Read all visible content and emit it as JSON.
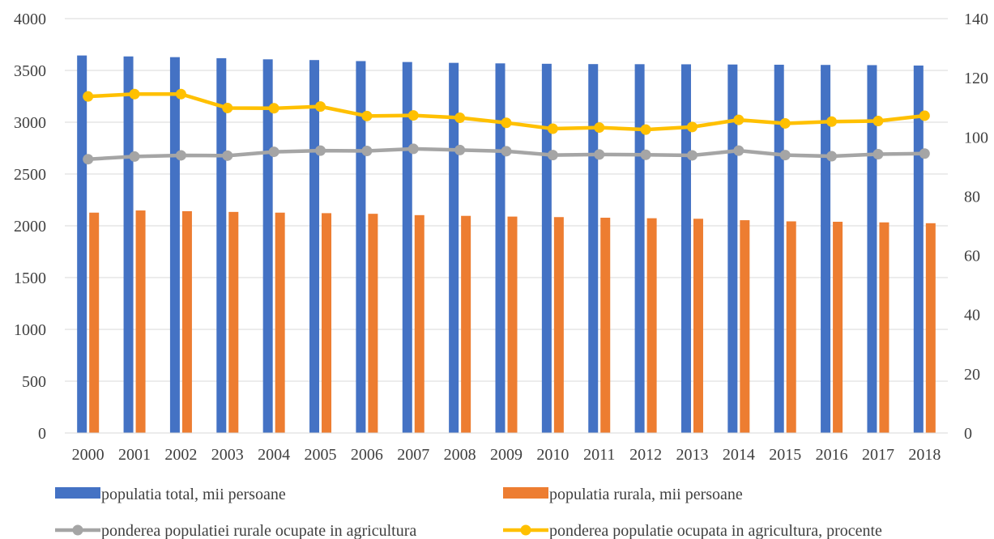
{
  "chart_data": {
    "type": "bar",
    "categories": [
      "2000",
      "2001",
      "2002",
      "2003",
      "2004",
      "2005",
      "2006",
      "2007",
      "2008",
      "2009",
      "2010",
      "2011",
      "2012",
      "2013",
      "2014",
      "2015",
      "2016",
      "2017",
      "2018"
    ],
    "ylim_left": [
      0,
      4000
    ],
    "yticks_left": [
      0,
      500,
      1000,
      1500,
      2000,
      2500,
      3000,
      3500,
      4000
    ],
    "ylim_right": [
      0,
      140
    ],
    "yticks_right": [
      0,
      20,
      40,
      60,
      80,
      100,
      120,
      140
    ],
    "grid": true,
    "legend_position": "bottom",
    "series": [
      {
        "name": "populatia total, mii persoane",
        "kind": "bar",
        "axis": "left",
        "color": "#4472C4",
        "values": [
          3644,
          3635,
          3628,
          3618,
          3607,
          3600,
          3590,
          3581,
          3573,
          3568,
          3564,
          3561,
          3560,
          3559,
          3557,
          3555,
          3553,
          3551,
          3547
        ]
      },
      {
        "name": "populatia rurala, mii persoane",
        "kind": "bar",
        "axis": "left",
        "color": "#ED7D31",
        "values": [
          2127,
          2148,
          2141,
          2134,
          2127,
          2122,
          2116,
          2103,
          2096,
          2089,
          2084,
          2078,
          2073,
          2068,
          2054,
          2043,
          2039,
          2033,
          2025
        ]
      },
      {
        "name": "ponderea populatiei rurale ocupate in agricultura",
        "kind": "line",
        "axis": "right",
        "color": "#A5A5A5",
        "values": [
          92.5,
          93.4,
          93.8,
          93.7,
          95.0,
          95.4,
          95.3,
          96.0,
          95.6,
          95.2,
          93.9,
          94.1,
          94.0,
          93.8,
          95.4,
          93.9,
          93.5,
          94.2,
          94.4
        ]
      },
      {
        "name": "ponderea populatie ocupata in agricultura, procente",
        "kind": "line",
        "axis": "right",
        "color": "#FFC000",
        "values": [
          113.7,
          114.5,
          114.5,
          109.8,
          109.7,
          110.3,
          107.1,
          107.3,
          106.5,
          104.8,
          102.8,
          103.2,
          102.5,
          103.4,
          105.8,
          104.6,
          105.2,
          105.4,
          107.2
        ]
      }
    ]
  }
}
